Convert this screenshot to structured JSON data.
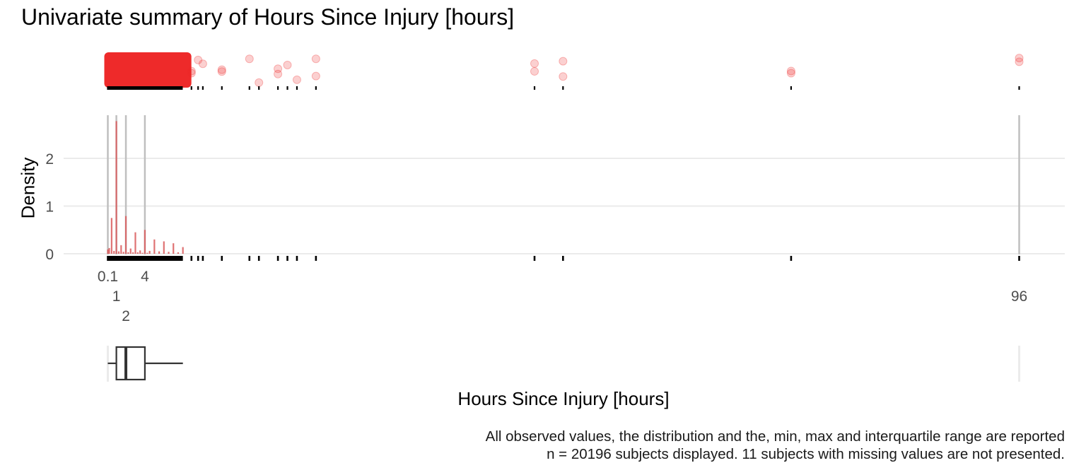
{
  "chart_data": {
    "type": "univariate-summary",
    "title": "Univariate summary of Hours Since Injury [hours]",
    "xlabel": "Hours Since Injury [hours]",
    "ylabel": "Density",
    "x_unit": "hours",
    "xlim": [
      0,
      100
    ],
    "x_breaks": [
      "0.1",
      "1",
      "2",
      "4",
      "96"
    ],
    "x_break_values": [
      0.1,
      1,
      2,
      4,
      96
    ],
    "y_ticks": [
      0,
      1,
      2
    ],
    "ylim": [
      0,
      2.9
    ],
    "grid": "horizontal",
    "density_spikes": [
      {
        "x": 0.1,
        "y": 0.09
      },
      {
        "x": 0.25,
        "y": 0.12
      },
      {
        "x": 0.5,
        "y": 0.75
      },
      {
        "x": 0.75,
        "y": 0.06
      },
      {
        "x": 1.0,
        "y": 2.78
      },
      {
        "x": 1.25,
        "y": 0.05
      },
      {
        "x": 1.5,
        "y": 0.18
      },
      {
        "x": 1.75,
        "y": 0.04
      },
      {
        "x": 2.0,
        "y": 0.79
      },
      {
        "x": 2.25,
        "y": 0.03
      },
      {
        "x": 2.5,
        "y": 0.11
      },
      {
        "x": 2.75,
        "y": 0.03
      },
      {
        "x": 3.0,
        "y": 0.45
      },
      {
        "x": 3.25,
        "y": 0.03
      },
      {
        "x": 3.5,
        "y": 0.07
      },
      {
        "x": 3.75,
        "y": 0.02
      },
      {
        "x": 4.0,
        "y": 0.5
      },
      {
        "x": 4.25,
        "y": 0.02
      },
      {
        "x": 4.5,
        "y": 0.06
      },
      {
        "x": 5.0,
        "y": 0.3
      },
      {
        "x": 5.5,
        "y": 0.05
      },
      {
        "x": 6.0,
        "y": 0.26
      },
      {
        "x": 6.5,
        "y": 0.04
      },
      {
        "x": 7.0,
        "y": 0.22
      },
      {
        "x": 7.5,
        "y": 0.03
      },
      {
        "x": 8.0,
        "y": 0.14
      }
    ],
    "outliers": [
      8.9,
      9.6,
      10.1,
      12.1,
      15.0,
      16.0,
      18.0,
      19.0,
      20.0,
      22.0,
      45.0,
      48.0,
      72.0,
      96.0
    ],
    "boxplot": {
      "min": 0.1,
      "q1": 1.0,
      "median": 2.0,
      "q3": 4.0,
      "whisker_high": 8.0,
      "max": 96.0
    },
    "captions": [
      "All observed values, the distribution and the, min, max and interquartile range are reported",
      "n = 20196 subjects displayed. 11 subjects with missing values are not presented."
    ],
    "colors": {
      "points": "#ee2a2a",
      "density": "#d9595a",
      "reference_lines": "#bfbfbf",
      "grid": "#ebebeb"
    }
  }
}
